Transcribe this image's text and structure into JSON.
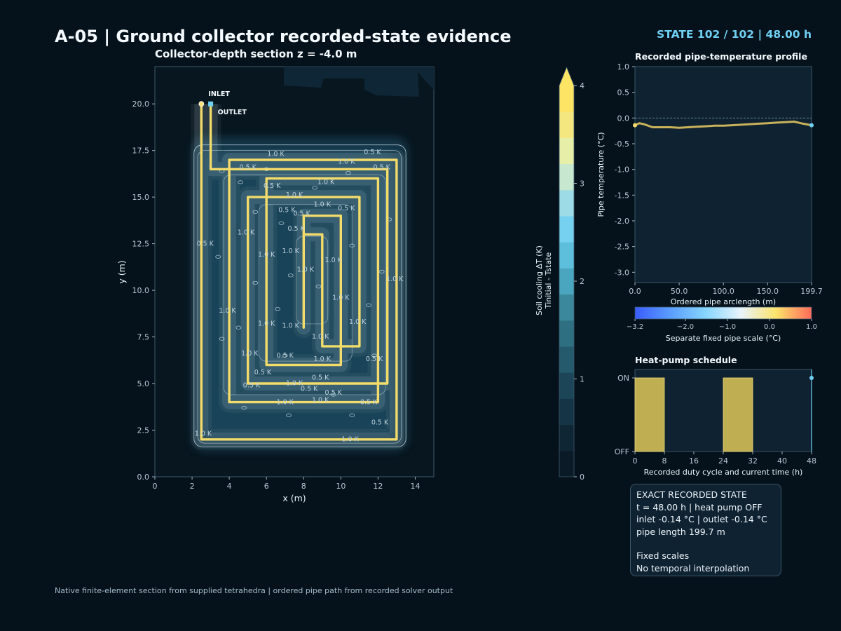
{
  "header": {
    "title": "A-05  |  Ground collector recorded-state evidence",
    "state_badge": "STATE 102 / 102   |   48.00 h",
    "footer_note": "Native finite-element section from supplied tetrahedra  |  ordered pipe path from recorded solver output"
  },
  "colors": {
    "background": "#06121b",
    "panel": "#0f2232",
    "pipe": "#f3dc6a",
    "accent_cyan": "#6fd0f2",
    "contour": "#d8ecf5",
    "schedule_on": "#bfae52"
  },
  "chart_data": [
    {
      "type": "heatmap",
      "id": "collector-section",
      "title": "Collector-depth section  z = -4.0 m",
      "xlabel": "x (m)",
      "ylabel": "y (m)",
      "xlim": [
        0,
        15
      ],
      "ylim": [
        0,
        22
      ],
      "x_ticks": [
        0,
        2,
        4,
        6,
        8,
        10,
        12,
        14
      ],
      "y_ticks": [
        "0.0",
        "2.5",
        "5.0",
        "7.5",
        "10.0",
        "12.5",
        "15.0",
        "17.5",
        "20.0"
      ],
      "y_tick_values": [
        0,
        2.5,
        5,
        7.5,
        10,
        12.5,
        15,
        17.5,
        20
      ],
      "pipe_centerline_x": [
        2.5,
        3.0,
        4.0,
        5.0,
        6.0,
        7.0,
        8.0,
        9.0
      ],
      "pipe_centerline_xy": [
        [
          2.5,
          20.0
        ],
        [
          2.5,
          2.0
        ],
        [
          13.0,
          2.0
        ],
        [
          13.0,
          17.0
        ],
        [
          4.0,
          17.0
        ],
        [
          4.0,
          4.0
        ],
        [
          12.0,
          4.0
        ],
        [
          12.0,
          16.0
        ],
        [
          6.0,
          16.0
        ],
        [
          6.0,
          6.0
        ],
        [
          10.0,
          6.0
        ],
        [
          10.0,
          14.0
        ],
        [
          8.0,
          14.0
        ],
        [
          8.0,
          8.0
        ],
        [
          8.0,
          13.0
        ],
        [
          9.0,
          13.0
        ],
        [
          9.0,
          7.0
        ],
        [
          11.0,
          7.0
        ],
        [
          11.0,
          15.0
        ],
        [
          5.0,
          15.0
        ],
        [
          5.0,
          5.0
        ],
        [
          12.5,
          5.0
        ],
        [
          12.5,
          16.5
        ],
        [
          3.0,
          16.5
        ],
        [
          3.0,
          20.0
        ]
      ],
      "markers": [
        {
          "label": "INLET",
          "x": 2.5,
          "y": 20.0
        },
        {
          "label": "OUTLET",
          "x": 3.0,
          "y": 20.0
        }
      ],
      "contour_labels": [
        "0.5 K",
        "1.0 K"
      ]
    },
    {
      "type": "colorbar",
      "id": "soil-cooling-colorbar",
      "label_line1": "Soil cooling ΔT (K)",
      "label_line2": "Tinitial - Tstate",
      "range": [
        0,
        4
      ],
      "ticks": [
        0,
        1,
        2,
        3,
        4
      ],
      "extend": "max",
      "stops": [
        "#0a1a26",
        "#0f2634",
        "#153445",
        "#1c4658",
        "#245a6c",
        "#2e6f82",
        "#3b889c",
        "#4aa6be",
        "#5ebfdd",
        "#76d0f0",
        "#9ddbe6",
        "#c7e8cf",
        "#e7eea7",
        "#f5e77f",
        "#fde465"
      ]
    },
    {
      "type": "line",
      "id": "pipe-temperature-profile",
      "title": "Recorded pipe-temperature profile",
      "xlabel": "Ordered pipe arclength (m)",
      "ylabel": "Pipe temperature (°C)",
      "xlim": [
        0,
        199.7
      ],
      "ylim": [
        -3.2,
        1.0
      ],
      "x_ticks": [
        "0.0",
        "50.0",
        "100.0",
        "150.0",
        "199.7"
      ],
      "x_tick_values": [
        0,
        50,
        100,
        150,
        199.7
      ],
      "y_ticks": [
        "1.0",
        "0.5",
        "0.0",
        "-0.5",
        "-1.0",
        "-1.5",
        "-2.0",
        "-2.5",
        "-3.0"
      ],
      "y_tick_values": [
        1,
        0.5,
        0,
        -0.5,
        -1,
        -1.5,
        -2,
        -2.5,
        -3
      ],
      "series": [
        {
          "x": [
            0,
            5,
            10,
            15,
            20,
            30,
            40,
            50,
            60,
            70,
            80,
            90,
            100,
            110,
            120,
            130,
            140,
            150,
            160,
            170,
            180,
            190,
            199.7
          ],
          "y": [
            -0.14,
            -0.1,
            -0.12,
            -0.15,
            -0.18,
            -0.18,
            -0.18,
            -0.19,
            -0.18,
            -0.17,
            -0.16,
            -0.15,
            -0.15,
            -0.14,
            -0.13,
            -0.12,
            -0.11,
            -0.1,
            -0.09,
            -0.08,
            -0.07,
            -0.11,
            -0.14
          ]
        }
      ],
      "reference_line": 0.0
    },
    {
      "type": "colorbar",
      "id": "pipe-scale-colorbar",
      "label": "Separate fixed pipe scale (°C)",
      "range": [
        -3.2,
        1.0
      ],
      "ticks": [
        "−3.2",
        "−2.0",
        "−1.0",
        "0.0",
        "1.0"
      ],
      "tick_values": [
        -3.2,
        -2.0,
        -1.0,
        0.0,
        1.0
      ],
      "stops": [
        "#3a5cff",
        "#5a9dff",
        "#86d5ff",
        "#e9f4fb",
        "#fbe36b",
        "#ff6a5a"
      ]
    },
    {
      "type": "bar",
      "id": "heat-pump-schedule",
      "title": "Heat-pump schedule",
      "xlabel": "Recorded duty cycle and current time (h)",
      "xlim": [
        0,
        48
      ],
      "x_ticks": [
        0,
        8,
        16,
        24,
        32,
        40,
        48
      ],
      "y_ticks": [
        "OFF",
        "ON"
      ],
      "on_intervals": [
        [
          0,
          8
        ],
        [
          24,
          32
        ]
      ],
      "current_time": 48
    }
  ],
  "info_box": {
    "line1": "EXACT RECORDED STATE",
    "line2": "t = 48.00 h   |   heat pump OFF",
    "line3": "inlet -0.14 °C   |   outlet -0.14 °C",
    "line4": "pipe length 199.7 m",
    "line5": "Fixed scales",
    "line6": "No temporal interpolation"
  }
}
